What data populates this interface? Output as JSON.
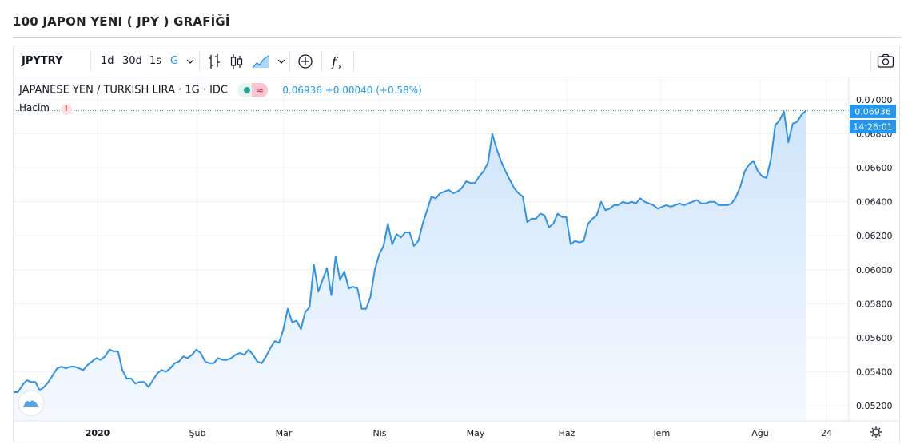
{
  "page": {
    "title": "100 JAPON YENI ( JPY ) GRAFİĞİ"
  },
  "toolbar": {
    "symbol": "JPYTRY",
    "intervals": [
      "1d",
      "30d",
      "1s",
      "G"
    ],
    "active_interval": "G",
    "icons": [
      "chevron-down-icon",
      "bar-chart-icon",
      "candlestick-icon",
      "area-chart-icon",
      "chevron-down-icon",
      "plus-circle-icon",
      "indicator-fx-icon",
      "camera-icon"
    ]
  },
  "legend": {
    "title": "JAPANESE YEN / TURKISH LIRA · 1G · IDC",
    "price": "0.06936 +0.00040 (+0.58%)",
    "volume_label": "Hacim",
    "volume_warning": "!"
  },
  "colors": {
    "line": "#2f91e8",
    "area_top": "#cfe5fb",
    "area_bottom": "#f5f9ff",
    "label_bg": "#2196f3",
    "dotted": "#26a69a"
  },
  "chart_data": {
    "type": "area",
    "title": "JAPANESE YEN / TURKISH LIRA · 1G · IDC",
    "xlabel": "",
    "ylabel": "",
    "ylim": [
      0.0512,
      0.07
    ],
    "y_ticks": [
      "0.07000",
      "0.06800",
      "0.06600",
      "0.06400",
      "0.06200",
      "0.06000",
      "0.05800",
      "0.05600",
      "0.05400",
      "0.05200"
    ],
    "x_tick_labels": [
      "2020",
      "Şub",
      "Mar",
      "Nis",
      "May",
      "Haz",
      "Tem",
      "Ağu",
      "24"
    ],
    "last_price_label": "0.06936",
    "time_label": "14:26:01",
    "grid": true,
    "series": [
      {
        "values": [
          0.0528,
          0.0528,
          0.0532,
          0.0535,
          0.0534,
          0.0534,
          0.0529,
          0.0531,
          0.0534,
          0.0538,
          0.0542,
          0.0543,
          0.0542,
          0.0543,
          0.0543,
          0.0542,
          0.0541,
          0.0544,
          0.0546,
          0.0548,
          0.0547,
          0.0549,
          0.0553,
          0.0552,
          0.0552,
          0.0541,
          0.0536,
          0.0536,
          0.0533,
          0.0534,
          0.0534,
          0.0531,
          0.0535,
          0.0539,
          0.0541,
          0.054,
          0.0542,
          0.0545,
          0.0546,
          0.0549,
          0.0548,
          0.055,
          0.0553,
          0.0551,
          0.0546,
          0.0545,
          0.0545,
          0.0548,
          0.0547,
          0.0547,
          0.0548,
          0.055,
          0.0551,
          0.055,
          0.0553,
          0.055,
          0.0546,
          0.0545,
          0.0549,
          0.0554,
          0.0558,
          0.0557,
          0.0565,
          0.0577,
          0.0569,
          0.057,
          0.0565,
          0.0575,
          0.0578,
          0.0603,
          0.0587,
          0.0594,
          0.0601,
          0.0585,
          0.0608,
          0.0594,
          0.0599,
          0.0589,
          0.059,
          0.0589,
          0.0577,
          0.0577,
          0.0584,
          0.06,
          0.0609,
          0.0614,
          0.0627,
          0.0615,
          0.0621,
          0.0619,
          0.0622,
          0.0622,
          0.0614,
          0.0617,
          0.0627,
          0.0635,
          0.0643,
          0.0642,
          0.0645,
          0.0646,
          0.0647,
          0.0645,
          0.0646,
          0.0648,
          0.0652,
          0.0651,
          0.0651,
          0.0655,
          0.0658,
          0.0663,
          0.068,
          0.0671,
          0.0664,
          0.0658,
          0.0653,
          0.0648,
          0.0645,
          0.0643,
          0.0628,
          0.063,
          0.063,
          0.0633,
          0.0632,
          0.0625,
          0.0627,
          0.0633,
          0.0631,
          0.0631,
          0.0615,
          0.0617,
          0.0616,
          0.0617,
          0.0627,
          0.063,
          0.0632,
          0.064,
          0.0635,
          0.0636,
          0.0638,
          0.0638,
          0.064,
          0.0639,
          0.064,
          0.0639,
          0.0642,
          0.064,
          0.0639,
          0.0638,
          0.0636,
          0.0637,
          0.0638,
          0.0637,
          0.0638,
          0.0639,
          0.0638,
          0.0639,
          0.064,
          0.0641,
          0.0639,
          0.0639,
          0.064,
          0.064,
          0.0638,
          0.0638,
          0.0638,
          0.0639,
          0.0643,
          0.0649,
          0.0658,
          0.0662,
          0.0664,
          0.0658,
          0.0655,
          0.0654,
          0.0665,
          0.0685,
          0.0688,
          0.0693,
          0.0675,
          0.0686,
          0.0687,
          0.0691,
          0.06936
        ]
      }
    ]
  }
}
